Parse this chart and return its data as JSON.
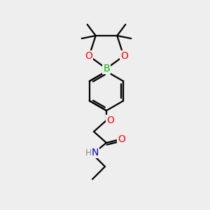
{
  "bg_color": "#eeeeee",
  "bond_color": "#000000",
  "atom_colors": {
    "O": "#ff0000",
    "N": "#0000cc",
    "B": "#00bb00",
    "H": "#778899",
    "C": "#000000"
  },
  "line_width": 1.6,
  "font_size_atom": 10,
  "font_size_h": 9,
  "fig_size": [
    3.0,
    3.0
  ],
  "dpi": 100,
  "xlim": [
    0,
    300
  ],
  "ylim": [
    0,
    300
  ]
}
